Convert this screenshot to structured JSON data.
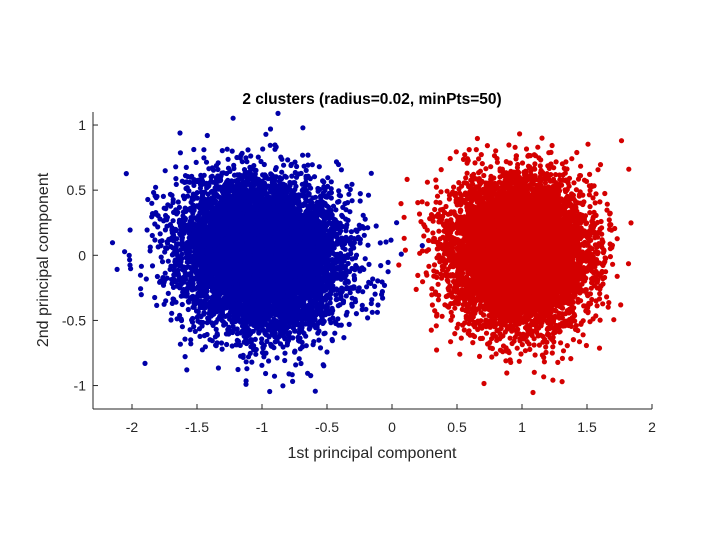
{
  "chart_data": {
    "type": "scatter",
    "title": "2 clusters (radius=0.02, minPts=50)",
    "xlabel": "1st principal component",
    "ylabel": "2nd principal component",
    "xlim": [
      -2.3,
      2.0
    ],
    "ylim": [
      -1.18,
      1.1
    ],
    "xticks": [
      -2,
      -1.5,
      -1,
      -0.5,
      0,
      0.5,
      1,
      1.5,
      2
    ],
    "xtick_labels": [
      "-2",
      "-1.5",
      "-1",
      "-0.5",
      "0",
      "0.5",
      "1",
      "1.5",
      "2"
    ],
    "yticks": [
      1,
      0.5,
      0,
      -0.5,
      -1
    ],
    "ytick_labels": [
      "1",
      "0.5",
      "0",
      "-0.5",
      "-1"
    ],
    "grid": false,
    "box": false,
    "series": [
      {
        "color": "#0000a8",
        "center": [
          -1.0,
          0.0
        ],
        "spread": {
          "sx": 0.3,
          "sy": 0.27,
          "rotation_deg": -25
        },
        "n_points_approx": 9000
      },
      {
        "color": "#d40000",
        "center": [
          0.98,
          0.02
        ],
        "spread": {
          "sx": 0.25,
          "sy": 0.27,
          "rotation_deg": 0
        },
        "n_points_approx": 9000
      }
    ]
  }
}
